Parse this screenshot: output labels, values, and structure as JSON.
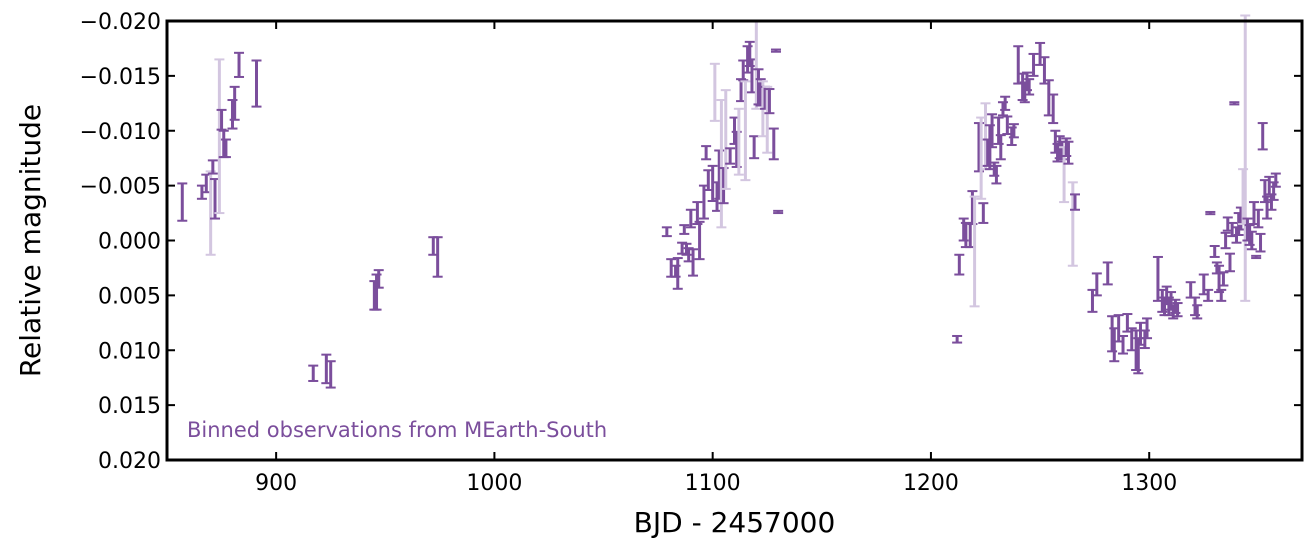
{
  "chart_data": {
    "type": "scatter",
    "title": "",
    "xlabel": "BJD - 2457000",
    "ylabel": "Relative magnitude",
    "xlim": [
      850,
      1370
    ],
    "ylim": [
      0.02,
      -0.02
    ],
    "y_inverted": true,
    "grid": false,
    "xticks": [
      900,
      1000,
      1100,
      1200,
      1300
    ],
    "yticks": [
      -0.02,
      -0.015,
      -0.01,
      -0.005,
      0.0,
      0.005,
      0.01,
      0.015,
      0.02
    ],
    "xtick_labels": [
      "900",
      "1000",
      "1100",
      "1200",
      "1300"
    ],
    "ytick_labels": [
      "−0.020",
      "−0.015",
      "−0.010",
      "−0.005",
      "0.000",
      "0.005",
      "0.010",
      "0.015",
      "0.020"
    ],
    "annotation": "Binned observations from MEarth-South",
    "colors": {
      "strong": "#7b4e9c",
      "faint": "#d3c6e0",
      "annotation": "#7b4e9c",
      "axis": "#000000"
    },
    "series": [
      {
        "marker": "errorbar",
        "points": [
          {
            "x": 857,
            "y": -0.0035,
            "err": 0.0017
          },
          {
            "x": 866,
            "y": -0.0044,
            "err": 0.0006
          },
          {
            "x": 868,
            "y": -0.0052,
            "err": 0.0008
          },
          {
            "x": 870,
            "y": -0.0025,
            "err": 0.0038
          },
          {
            "x": 871,
            "y": -0.0067,
            "err": 0.0006
          },
          {
            "x": 872,
            "y": -0.0038,
            "err": 0.0018
          },
          {
            "x": 874,
            "y": -0.0095,
            "err": 0.007
          },
          {
            "x": 875,
            "y": -0.011,
            "err": 0.0009
          },
          {
            "x": 876,
            "y": -0.0088,
            "err": 0.0012
          },
          {
            "x": 877,
            "y": -0.0084,
            "err": 0.0008
          },
          {
            "x": 880,
            "y": -0.0115,
            "err": 0.0013
          },
          {
            "x": 881,
            "y": -0.0125,
            "err": 0.0015
          },
          {
            "x": 883,
            "y": -0.016,
            "err": 0.0011
          },
          {
            "x": 891,
            "y": -0.0143,
            "err": 0.0021
          },
          {
            "x": 917,
            "y": 0.0121,
            "err": 0.0007
          },
          {
            "x": 923,
            "y": 0.0117,
            "err": 0.0013
          },
          {
            "x": 925,
            "y": 0.0122,
            "err": 0.0012
          },
          {
            "x": 945,
            "y": 0.005,
            "err": 0.0013
          },
          {
            "x": 946,
            "y": 0.0047,
            "err": 0.0016
          },
          {
            "x": 947,
            "y": 0.0035,
            "err": 0.0008
          },
          {
            "x": 972,
            "y": 0.0005,
            "err": 0.0008
          },
          {
            "x": 974,
            "y": 0.0015,
            "err": 0.0018
          },
          {
            "x": 1079,
            "y": -0.0008,
            "err": 0.0004
          },
          {
            "x": 1081,
            "y": 0.0025,
            "err": 0.0008
          },
          {
            "x": 1083,
            "y": 0.0028,
            "err": 0.0005
          },
          {
            "x": 1084,
            "y": 0.003,
            "err": 0.0014
          },
          {
            "x": 1086,
            "y": 0.0007,
            "err": 0.0005
          },
          {
            "x": 1087,
            "y": -0.001,
            "err": 0.0004
          },
          {
            "x": 1088,
            "y": 0.0008,
            "err": 0.0005
          },
          {
            "x": 1089,
            "y": 0.0013,
            "err": 0.0006
          },
          {
            "x": 1090,
            "y": -0.002,
            "err": 0.0008
          },
          {
            "x": 1091,
            "y": 0.002,
            "err": 0.0012
          },
          {
            "x": 1093,
            "y": -0.0025,
            "err": 0.001
          },
          {
            "x": 1094,
            "y": 0.0,
            "err": 0.0017
          },
          {
            "x": 1096,
            "y": -0.0035,
            "err": 0.0015
          },
          {
            "x": 1097,
            "y": -0.008,
            "err": 0.0006
          },
          {
            "x": 1098,
            "y": -0.0055,
            "err": 0.0009
          },
          {
            "x": 1100,
            "y": -0.0052,
            "err": 0.0016
          },
          {
            "x": 1101,
            "y": -0.0135,
            "err": 0.0026
          },
          {
            "x": 1102,
            "y": -0.004,
            "err": 0.0013
          },
          {
            "x": 1103,
            "y": -0.006,
            "err": 0.0022
          },
          {
            "x": 1104,
            "y": -0.007,
            "err": 0.0058
          },
          {
            "x": 1105,
            "y": -0.005,
            "err": 0.0016
          },
          {
            "x": 1106,
            "y": -0.0092,
            "err": 0.0045
          },
          {
            "x": 1108,
            "y": -0.0077,
            "err": 0.0007
          },
          {
            "x": 1110,
            "y": -0.01,
            "err": 0.0012
          },
          {
            "x": 1111,
            "y": -0.0083,
            "err": 0.0016
          },
          {
            "x": 1112,
            "y": -0.009,
            "err": 0.003
          },
          {
            "x": 1113,
            "y": -0.0137,
            "err": 0.001
          },
          {
            "x": 1114,
            "y": -0.0155,
            "err": 0.0009
          },
          {
            "x": 1115,
            "y": -0.01,
            "err": 0.0045
          },
          {
            "x": 1116,
            "y": -0.0165,
            "err": 0.0012
          },
          {
            "x": 1117,
            "y": -0.017,
            "err": 0.0011
          },
          {
            "x": 1118,
            "y": -0.015,
            "err": 0.0015
          },
          {
            "x": 1119,
            "y": -0.0085,
            "err": 0.001
          },
          {
            "x": 1120,
            "y": -0.016,
            "err": 0.004
          },
          {
            "x": 1121,
            "y": -0.014,
            "err": 0.0016
          },
          {
            "x": 1122,
            "y": -0.0135,
            "err": 0.0012
          },
          {
            "x": 1123,
            "y": -0.012,
            "err": 0.0025
          },
          {
            "x": 1124,
            "y": -0.013,
            "err": 0.001
          },
          {
            "x": 1125,
            "y": -0.011,
            "err": 0.003
          },
          {
            "x": 1126,
            "y": -0.0127,
            "err": 0.0011
          },
          {
            "x": 1128,
            "y": -0.0088,
            "err": 0.0014
          },
          {
            "x": 1129,
            "y": -0.0173,
            "err": 0.0001
          },
          {
            "x": 1130,
            "y": -0.0026,
            "err": 0.0001
          },
          {
            "x": 1212,
            "y": 0.009,
            "err": 0.0003
          },
          {
            "x": 1213,
            "y": 0.0022,
            "err": 0.0009
          },
          {
            "x": 1215,
            "y": -0.001,
            "err": 0.001
          },
          {
            "x": 1216,
            "y": -0.0005,
            "err": 0.0011
          },
          {
            "x": 1218,
            "y": -0.0005,
            "err": 0.0011
          },
          {
            "x": 1219,
            "y": -0.003,
            "err": 0.0015
          },
          {
            "x": 1220,
            "y": 0.001,
            "err": 0.005
          },
          {
            "x": 1222,
            "y": -0.0085,
            "err": 0.0022
          },
          {
            "x": 1223,
            "y": -0.0075,
            "err": 0.0037
          },
          {
            "x": 1224,
            "y": -0.0025,
            "err": 0.0009
          },
          {
            "x": 1225,
            "y": -0.0095,
            "err": 0.003
          },
          {
            "x": 1226,
            "y": -0.008,
            "err": 0.0012
          },
          {
            "x": 1227,
            "y": -0.0085,
            "err": 0.002
          },
          {
            "x": 1228,
            "y": -0.01,
            "err": 0.0015
          },
          {
            "x": 1229,
            "y": -0.0065,
            "err": 0.0006
          },
          {
            "x": 1230,
            "y": -0.006,
            "err": 0.0008
          },
          {
            "x": 1231,
            "y": -0.01,
            "err": 0.0012
          },
          {
            "x": 1232,
            "y": -0.0085,
            "err": 0.0011
          },
          {
            "x": 1233,
            "y": -0.012,
            "err": 0.0006
          },
          {
            "x": 1234,
            "y": -0.0125,
            "err": 0.0006
          },
          {
            "x": 1235,
            "y": -0.0105,
            "err": 0.0008
          },
          {
            "x": 1237,
            "y": -0.0095,
            "err": 0.0008
          },
          {
            "x": 1238,
            "y": -0.01,
            "err": 0.0006
          },
          {
            "x": 1240,
            "y": -0.016,
            "err": 0.0017
          },
          {
            "x": 1242,
            "y": -0.014,
            "err": 0.0012
          },
          {
            "x": 1243,
            "y": -0.0135,
            "err": 0.0009
          },
          {
            "x": 1244,
            "y": -0.0145,
            "err": 0.0008
          },
          {
            "x": 1245,
            "y": -0.014,
            "err": 0.0007
          },
          {
            "x": 1247,
            "y": -0.016,
            "err": 0.001
          },
          {
            "x": 1250,
            "y": -0.017,
            "err": 0.001
          },
          {
            "x": 1252,
            "y": -0.0155,
            "err": 0.0012
          },
          {
            "x": 1254,
            "y": -0.013,
            "err": 0.0016
          },
          {
            "x": 1256,
            "y": -0.012,
            "err": 0.0013
          },
          {
            "x": 1257,
            "y": -0.009,
            "err": 0.001
          },
          {
            "x": 1258,
            "y": -0.008,
            "err": 0.0008
          },
          {
            "x": 1259,
            "y": -0.0085,
            "err": 0.001
          },
          {
            "x": 1260,
            "y": -0.0082,
            "err": 0.0008
          },
          {
            "x": 1261,
            "y": -0.006,
            "err": 0.0025
          },
          {
            "x": 1262,
            "y": -0.0085,
            "err": 0.0008
          },
          {
            "x": 1263,
            "y": -0.008,
            "err": 0.001
          },
          {
            "x": 1265,
            "y": -0.0015,
            "err": 0.0038
          },
          {
            "x": 1266,
            "y": -0.0035,
            "err": 0.0007
          },
          {
            "x": 1274,
            "y": 0.0055,
            "err": 0.001
          },
          {
            "x": 1276,
            "y": 0.004,
            "err": 0.001
          },
          {
            "x": 1281,
            "y": 0.003,
            "err": 0.001
          },
          {
            "x": 1283,
            "y": 0.0085,
            "err": 0.0016
          },
          {
            "x": 1284,
            "y": 0.0095,
            "err": 0.0015
          },
          {
            "x": 1286,
            "y": 0.008,
            "err": 0.0012
          },
          {
            "x": 1288,
            "y": 0.0095,
            "err": 0.0008
          },
          {
            "x": 1290,
            "y": 0.0075,
            "err": 0.0008
          },
          {
            "x": 1292,
            "y": 0.009,
            "err": 0.001
          },
          {
            "x": 1294,
            "y": 0.01,
            "err": 0.0018
          },
          {
            "x": 1295,
            "y": 0.0105,
            "err": 0.0016
          },
          {
            "x": 1296,
            "y": 0.0085,
            "err": 0.001
          },
          {
            "x": 1298,
            "y": 0.009,
            "err": 0.0008
          },
          {
            "x": 1299,
            "y": 0.008,
            "err": 0.0009
          },
          {
            "x": 1304,
            "y": 0.0035,
            "err": 0.002
          },
          {
            "x": 1306,
            "y": 0.0055,
            "err": 0.001
          },
          {
            "x": 1307,
            "y": 0.006,
            "err": 0.0008
          },
          {
            "x": 1308,
            "y": 0.005,
            "err": 0.0008
          },
          {
            "x": 1309,
            "y": 0.006,
            "err": 0.0008
          },
          {
            "x": 1310,
            "y": 0.0055,
            "err": 0.0008
          },
          {
            "x": 1311,
            "y": 0.0065,
            "err": 0.0006
          },
          {
            "x": 1312,
            "y": 0.006,
            "err": 0.0006
          },
          {
            "x": 1313,
            "y": 0.0063,
            "err": 0.0006
          },
          {
            "x": 1319,
            "y": 0.0045,
            "err": 0.0007
          },
          {
            "x": 1321,
            "y": 0.006,
            "err": 0.0008
          },
          {
            "x": 1322,
            "y": 0.0065,
            "err": 0.0006
          },
          {
            "x": 1325,
            "y": 0.004,
            "err": 0.0009
          },
          {
            "x": 1327,
            "y": 0.005,
            "err": 0.0005
          },
          {
            "x": 1328,
            "y": -0.0025,
            "err": 0.0001
          },
          {
            "x": 1330,
            "y": 0.001,
            "err": 0.0005
          },
          {
            "x": 1331,
            "y": 0.0025,
            "err": 0.0005
          },
          {
            "x": 1332,
            "y": 0.0035,
            "err": 0.0012
          },
          {
            "x": 1333,
            "y": 0.005,
            "err": 0.0005
          },
          {
            "x": 1334,
            "y": 0.0035,
            "err": 0.0006
          },
          {
            "x": 1335,
            "y": 0.0,
            "err": 0.0007
          },
          {
            "x": 1336,
            "y": -0.0015,
            "err": 0.0006
          },
          {
            "x": 1337,
            "y": 0.002,
            "err": 0.0008
          },
          {
            "x": 1338,
            "y": -0.001,
            "err": 0.0006
          },
          {
            "x": 1339,
            "y": -0.0125,
            "err": 0.0001
          },
          {
            "x": 1340,
            "y": -0.0005,
            "err": 0.0007
          },
          {
            "x": 1341,
            "y": -0.0015,
            "err": 0.001
          },
          {
            "x": 1342,
            "y": -0.002,
            "err": 0.001
          },
          {
            "x": 1343,
            "y": -0.004,
            "err": 0.0025
          },
          {
            "x": 1344,
            "y": -0.0075,
            "err": 0.013
          },
          {
            "x": 1345,
            "y": -0.001,
            "err": 0.001
          },
          {
            "x": 1346,
            "y": -0.0005,
            "err": 0.0009
          },
          {
            "x": 1347,
            "y": 0.0,
            "err": 0.0008
          },
          {
            "x": 1348,
            "y": -0.0025,
            "err": 0.001
          },
          {
            "x": 1349,
            "y": 0.0015,
            "err": 0.0001
          },
          {
            "x": 1350,
            "y": -0.002,
            "err": 0.0008
          },
          {
            "x": 1351,
            "y": 0.0002,
            "err": 0.0008
          },
          {
            "x": 1352,
            "y": -0.0095,
            "err": 0.0012
          },
          {
            "x": 1353,
            "y": -0.0045,
            "err": 0.001
          },
          {
            "x": 1354,
            "y": -0.003,
            "err": 0.001
          },
          {
            "x": 1355,
            "y": -0.005,
            "err": 0.0008
          },
          {
            "x": 1356,
            "y": -0.0035,
            "err": 0.0007
          },
          {
            "x": 1357,
            "y": -0.0045,
            "err": 0.0008
          },
          {
            "x": 1358,
            "y": -0.0055,
            "err": 0.0006
          }
        ]
      }
    ]
  }
}
